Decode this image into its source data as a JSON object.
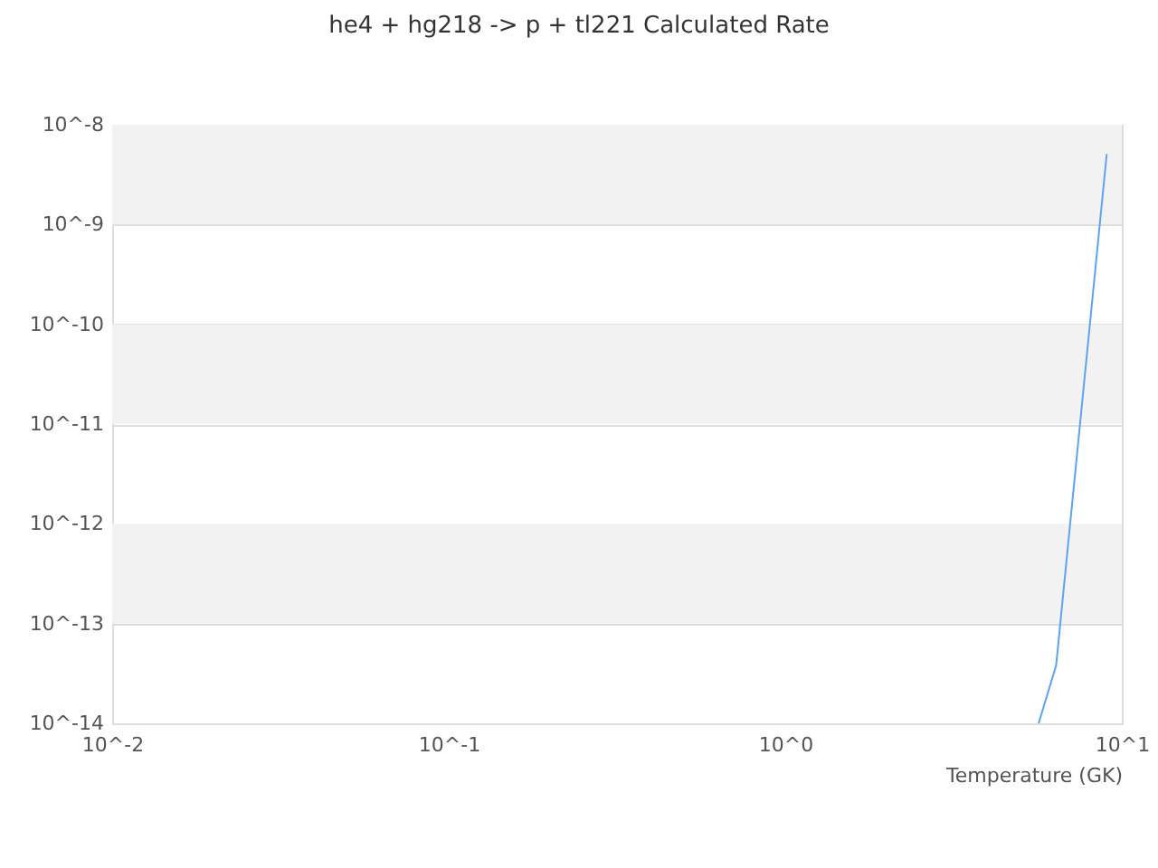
{
  "chart_data": {
    "type": "line",
    "title": "he4 + hg218 -> p + tl221 Calculated Rate",
    "xlabel": "Temperature (GK)",
    "log": "xy",
    "x": [
      5.66,
      6.38,
      9.02
    ],
    "series": [
      {
        "color": "#5ba3f5",
        "values": [
          1e-14,
          3.8e-14,
          5.1e-09
        ]
      }
    ],
    "xlim": [
      0.01,
      10
    ],
    "xticks": [
      {
        "value": 0.01,
        "label": "10^-2"
      },
      {
        "value": 0.1,
        "label": "10^-1"
      },
      {
        "value": 1,
        "label": "10^0"
      },
      {
        "value": 10,
        "label": "10^1"
      }
    ],
    "ylim": [
      1e-14,
      1e-08
    ],
    "yticks": [
      {
        "value": 1e-14,
        "label": "10^-14"
      },
      {
        "value": 1e-13,
        "label": "10^-13"
      },
      {
        "value": 1e-12,
        "label": "10^-12"
      },
      {
        "value": 1e-11,
        "label": "10^-11"
      },
      {
        "value": 1e-10,
        "label": "10^-10"
      },
      {
        "value": 1e-09,
        "label": "10^-9"
      },
      {
        "value": 1e-08,
        "label": "10^-8"
      }
    ],
    "grid": "y",
    "bands": [
      {
        "axis": "y",
        "from": 1e-09,
        "to": 1e-08,
        "color": "#f2f2f2"
      },
      {
        "axis": "y",
        "from": 1e-11,
        "to": 1e-10,
        "color": "#f2f2f2"
      },
      {
        "axis": "y",
        "from": 1e-13,
        "to": 1e-12,
        "color": "#f2f2f2"
      }
    ]
  }
}
